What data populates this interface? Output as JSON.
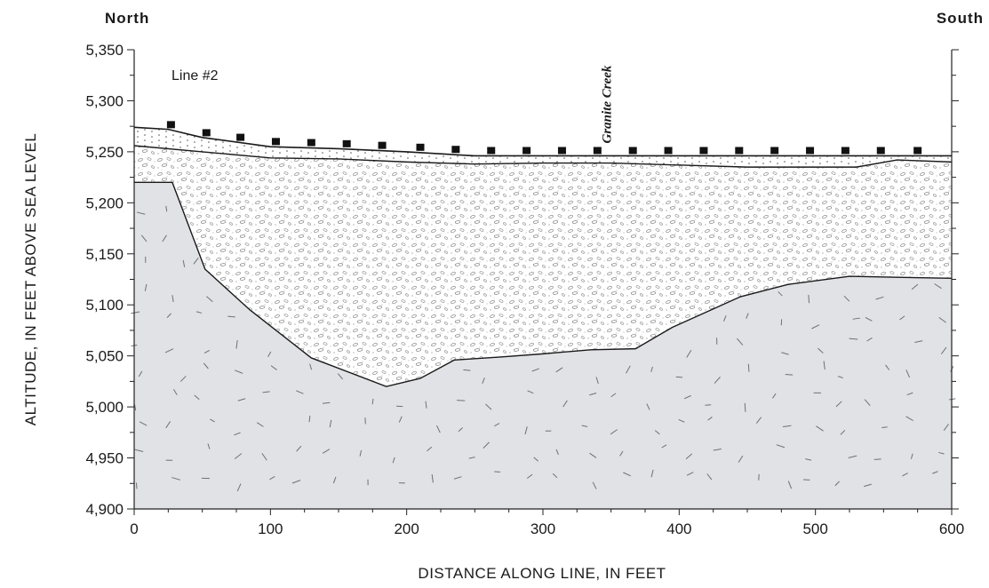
{
  "chart_data": {
    "type": "area",
    "title": "",
    "xlabel": "DISTANCE ALONG LINE, IN FEET",
    "ylabel": "ALTITUDE, IN FEET ABOVE SEA LEVEL",
    "xlim": [
      0,
      600
    ],
    "ylim": [
      4900,
      5350
    ],
    "x_ticks": [
      0,
      100,
      200,
      300,
      400,
      500,
      600
    ],
    "x_tick_labels": [
      "0",
      "100",
      "200",
      "300",
      "400",
      "500",
      "600"
    ],
    "y_ticks": [
      4900,
      4950,
      5000,
      5050,
      5100,
      5150,
      5200,
      5250,
      5300,
      5350
    ],
    "y_tick_labels": [
      "4,900",
      "4,950",
      "5,000",
      "5,050",
      "5,100",
      "5,150",
      "5,200",
      "5,250",
      "5,300",
      "5,350"
    ],
    "direction_left": "North",
    "direction_right": "South",
    "line_label": "Line #2",
    "creek_label": "Granite Creek",
    "creek_x": 355,
    "series": [
      {
        "key": "land_surface",
        "x": [
          0,
          25,
          50,
          100,
          150,
          200,
          250,
          300,
          350,
          400,
          450,
          500,
          550,
          600
        ],
        "y": [
          5274,
          5272,
          5264,
          5255,
          5253,
          5250,
          5246,
          5246,
          5246,
          5246,
          5246,
          5246,
          5246,
          5246
        ]
      },
      {
        "key": "fine_sediment_base",
        "x": [
          0,
          50,
          100,
          150,
          200,
          250,
          300,
          350,
          400,
          450,
          500,
          530,
          560,
          600
        ],
        "y": [
          5256,
          5250,
          5244,
          5243,
          5240,
          5238,
          5239,
          5239,
          5237,
          5235,
          5235,
          5235,
          5242,
          5240
        ]
      },
      {
        "key": "bedrock_surface",
        "x": [
          0,
          28,
          52,
          85,
          130,
          185,
          210,
          235,
          270,
          300,
          335,
          368,
          395,
          445,
          480,
          525,
          560,
          600
        ],
        "y": [
          5220,
          5220,
          5135,
          5095,
          5048,
          5020,
          5028,
          5046,
          5049,
          5052,
          5056,
          5057,
          5078,
          5108,
          5120,
          5128,
          5127,
          5126
        ]
      }
    ],
    "markers_x": [
      27,
      53,
      78,
      104,
      130,
      156,
      182,
      210,
      236,
      262,
      288,
      314,
      340,
      366,
      392,
      418,
      444,
      470,
      496,
      522,
      548,
      575
    ],
    "grid": false,
    "colors": {
      "bedrock_fill": "#e1e2e5",
      "line": "#1a1a1a"
    }
  }
}
